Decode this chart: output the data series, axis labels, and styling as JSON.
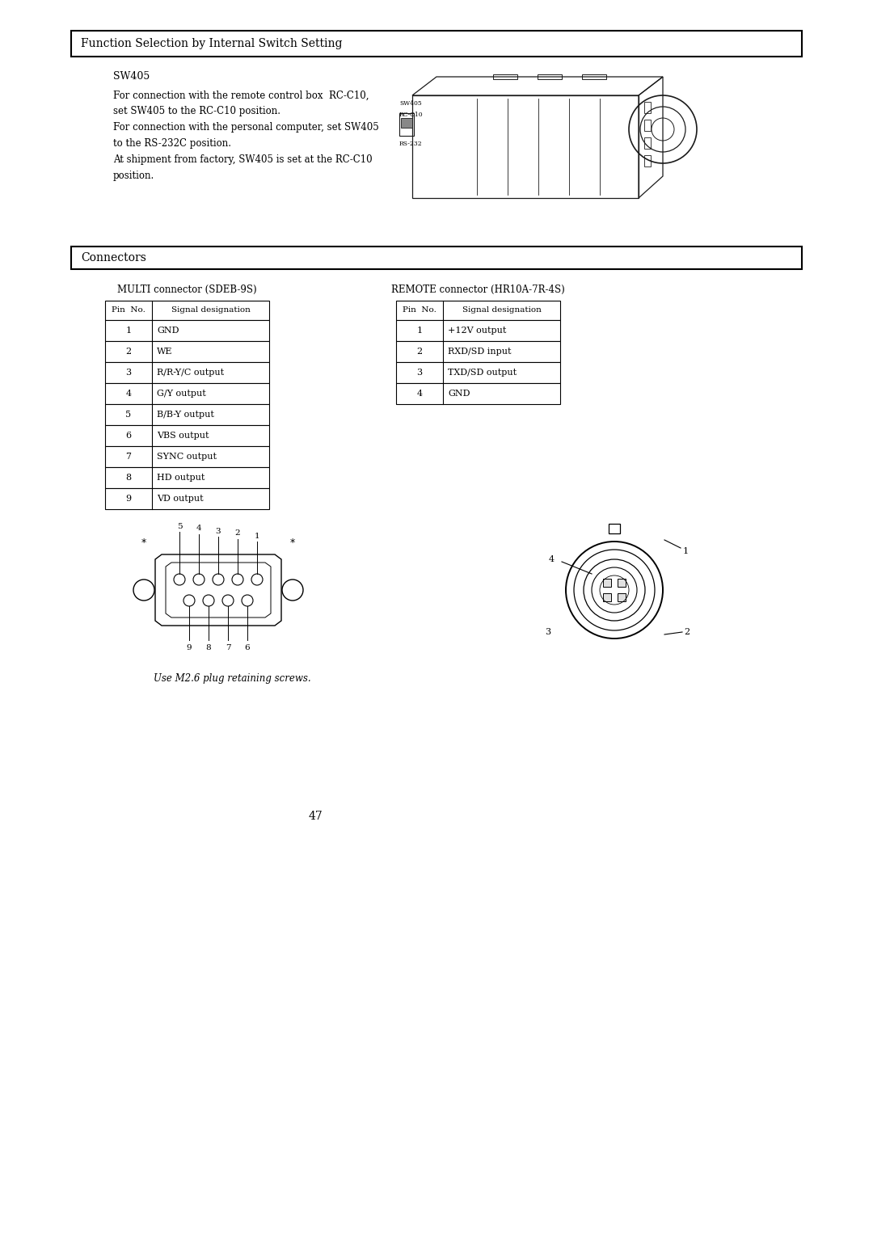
{
  "title1": "Function Selection by Internal Switch Setting",
  "title2": "Connectors",
  "sw405_label": "SW405",
  "sw405_text_lines": [
    "For connection with the remote control box  RC-C10,",
    "set SW405 to the RC-C10 position.",
    "For connection with the personal computer, set SW405",
    "to the RS-232C position.",
    "At shipment from factory, SW405 is set at the RC-C10",
    "position."
  ],
  "multi_title": "MULTI connector (SDEB-9S)",
  "remote_title": "REMOTE connector (HR10A-7R-4S)",
  "multi_headers": [
    "Pin  No.",
    "Signal designation"
  ],
  "multi_rows": [
    [
      "1",
      "GND"
    ],
    [
      "2",
      "WE"
    ],
    [
      "3",
      "R/R-Y/C output"
    ],
    [
      "4",
      "G/Y output"
    ],
    [
      "5",
      "B/B-Y output"
    ],
    [
      "6",
      "VBS output"
    ],
    [
      "7",
      "SYNC output"
    ],
    [
      "8",
      "HD output"
    ],
    [
      "9",
      "VD output"
    ]
  ],
  "remote_headers": [
    "Pin  No.",
    "Signal designation"
  ],
  "remote_rows": [
    [
      "1",
      "+12V output"
    ],
    [
      "2",
      "RXD/SD input"
    ],
    [
      "3",
      "TXD/SD output"
    ],
    [
      "4",
      "GND"
    ]
  ],
  "footnote": "Use M2.6 plug retaining screws.",
  "page_num": "47"
}
